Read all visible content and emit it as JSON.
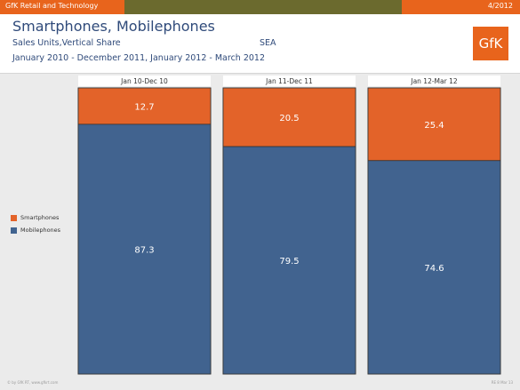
{
  "header": {
    "brand": "GfK Retail and Technology",
    "date": "4/2012",
    "title": "Smartphones, Mobilephones",
    "subtitle": "Sales Units,Vertical Share",
    "region": "SEA",
    "period": "January 2010 - December 2011, January 2012 - March 2012",
    "logo": "GfK"
  },
  "colors": {
    "smartphones": "#e36329",
    "mobilephones": "#41638f",
    "accent": "#e8641c",
    "bar_accent_dark": "#6b6a2e",
    "title_text": "#2f4a7a"
  },
  "footer": {
    "left": "© by GfK RT, www.gfkrt.com",
    "right": "RE 8 Mar 13"
  },
  "chart_data": {
    "type": "bar",
    "stacked": true,
    "categories": [
      "Jan 10-Dec 10",
      "Jan 11-Dec 11",
      "Jan 12-Mar 12"
    ],
    "series": [
      {
        "name": "Mobilephones",
        "values": [
          87.3,
          79.5,
          74.6
        ]
      },
      {
        "name": "Smartphones",
        "values": [
          12.7,
          20.5,
          25.4
        ]
      }
    ],
    "ylim": [
      0,
      100
    ],
    "legend": [
      "Smartphones",
      "Mobilephones"
    ],
    "legend_position": "left"
  }
}
